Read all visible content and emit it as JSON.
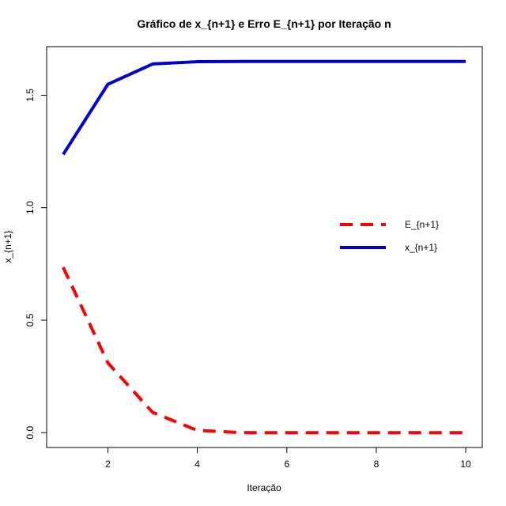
{
  "chart_data": {
    "type": "line",
    "title": "Gráfico de x_{n+1} e Erro E_{n+1} por Iteração n",
    "xlabel": "Iteração",
    "ylabel": "x_{n+1}",
    "xlim": [
      0.63,
      10.37
    ],
    "ylim": [
      -0.066,
      1.716
    ],
    "x_ticks": [
      2,
      4,
      6,
      8,
      10
    ],
    "y_ticks": [
      0.0,
      0.5,
      1.0,
      1.5
    ],
    "x_tick_labels": [
      "2",
      "4",
      "6",
      "8",
      "10"
    ],
    "y_tick_labels": [
      "0.0",
      "0.5",
      "1.0",
      "1.5"
    ],
    "grid": false,
    "legend_position": "right",
    "x": [
      1,
      2,
      3,
      4,
      5,
      6,
      7,
      8,
      9,
      10
    ],
    "series": [
      {
        "name": "x_{n+1}",
        "color": "#0000cd",
        "style": "solid",
        "values": [
          1.237,
          1.549,
          1.639,
          1.649,
          1.65,
          1.65,
          1.65,
          1.65,
          1.65,
          1.65
        ]
      },
      {
        "name": "E_{n+1}",
        "color": "#ff0000",
        "style": "dashed",
        "values": [
          0.735,
          0.31,
          0.09,
          0.01,
          0.0,
          0.0,
          0.0,
          0.0,
          0.0,
          0.0
        ]
      }
    ],
    "legend_order": [
      "E_{n+1}",
      "x_{n+1}"
    ]
  }
}
